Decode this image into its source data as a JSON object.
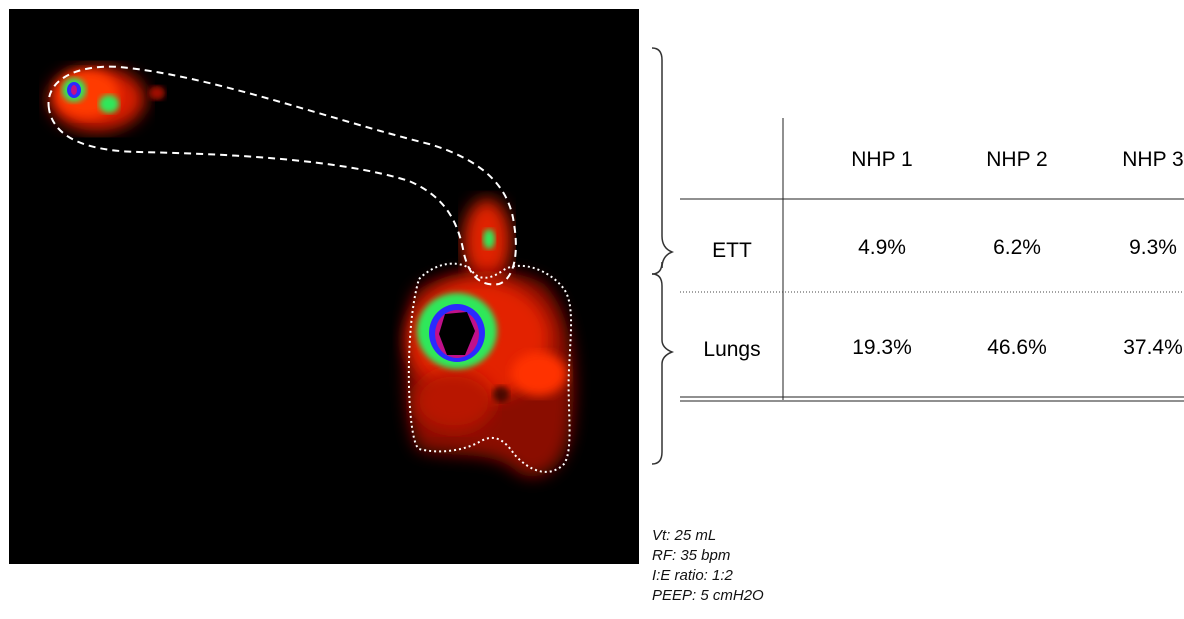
{
  "scan_image": {
    "description_regions": [
      "endotracheal-tube-outline",
      "lungs-outline"
    ],
    "colors": {
      "background": "#000000",
      "hot_red": "#ff2a00",
      "mid_green": "#2ee85a",
      "cool_blue": "#2a2aff",
      "peak_magenta": "#c0108a"
    }
  },
  "table": {
    "columns": [
      "NHP 1",
      "NHP 2",
      "NHP 3"
    ],
    "rows": [
      {
        "label": "ETT",
        "values": [
          "4.9%",
          "6.2%",
          "9.3%"
        ]
      },
      {
        "label": "Lungs",
        "values": [
          "19.3%",
          "46.6%",
          "37.4%"
        ]
      }
    ]
  },
  "ventilation_params": [
    "Vt: 25 mL",
    "RF: 35 bpm",
    "I:E ratio: 1:2",
    "PEEP: 5 cmH2O"
  ]
}
